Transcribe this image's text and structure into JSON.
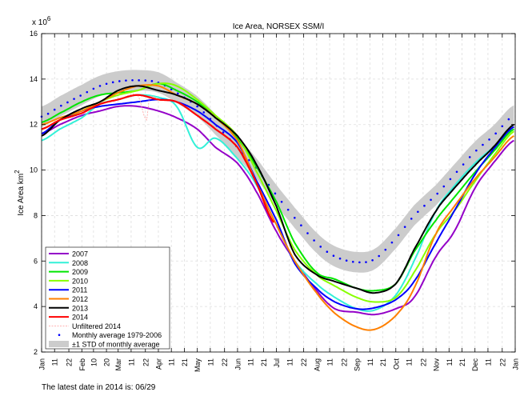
{
  "chart_data": {
    "type": "line",
    "title": "Ice Area, NORSEX SSM/I",
    "ylabel": "Ice Area km",
    "ylabel_superscript": "2",
    "y_multiplier_label": "x 10",
    "y_multiplier_exponent": "6",
    "xlabel": "",
    "ylim": [
      2,
      16
    ],
    "yticks": [
      2,
      4,
      6,
      8,
      10,
      12,
      14,
      16
    ],
    "xlim_day_of_year": [
      1,
      366
    ],
    "grid": true,
    "legend_placement": "bottom-left",
    "xticks": [
      {
        "day": 1,
        "label": "Jan"
      },
      {
        "day": 11,
        "label": "11"
      },
      {
        "day": 22,
        "label": "22"
      },
      {
        "day": 32,
        "label": "Feb"
      },
      {
        "day": 41,
        "label": "10"
      },
      {
        "day": 51,
        "label": "20"
      },
      {
        "day": 60,
        "label": "Mar"
      },
      {
        "day": 70,
        "label": "11"
      },
      {
        "day": 81,
        "label": "22"
      },
      {
        "day": 91,
        "label": "Apr"
      },
      {
        "day": 101,
        "label": "11"
      },
      {
        "day": 111,
        "label": "21"
      },
      {
        "day": 121,
        "label": "May"
      },
      {
        "day": 131,
        "label": "11"
      },
      {
        "day": 142,
        "label": "22"
      },
      {
        "day": 152,
        "label": "Jun"
      },
      {
        "day": 162,
        "label": "11"
      },
      {
        "day": 172,
        "label": "21"
      },
      {
        "day": 182,
        "label": "Jul"
      },
      {
        "day": 192,
        "label": "11"
      },
      {
        "day": 203,
        "label": "22"
      },
      {
        "day": 213,
        "label": "Aug"
      },
      {
        "day": 223,
        "label": "11"
      },
      {
        "day": 234,
        "label": "22"
      },
      {
        "day": 244,
        "label": "Sep"
      },
      {
        "day": 254,
        "label": "11"
      },
      {
        "day": 264,
        "label": "21"
      },
      {
        "day": 274,
        "label": "Oct"
      },
      {
        "day": 284,
        "label": "11"
      },
      {
        "day": 295,
        "label": "22"
      },
      {
        "day": 305,
        "label": "Nov"
      },
      {
        "day": 315,
        "label": "11"
      },
      {
        "day": 325,
        "label": "21"
      },
      {
        "day": 335,
        "label": "Dec"
      },
      {
        "day": 345,
        "label": "11"
      },
      {
        "day": 356,
        "label": "22"
      },
      {
        "day": 366,
        "label": "Jan"
      }
    ],
    "days": [
      1,
      15,
      32,
      46,
      60,
      75,
      91,
      105,
      121,
      135,
      152,
      166,
      182,
      196,
      213,
      227,
      244,
      258,
      274,
      288,
      305,
      319,
      335,
      349,
      365
    ],
    "mean": {
      "name": "Monthly average 1979-2006",
      "color": "#0000ff",
      "values": [
        12.35,
        12.8,
        13.3,
        13.7,
        13.9,
        13.95,
        13.85,
        13.4,
        12.8,
        12.0,
        11.0,
        10.1,
        8.9,
        7.9,
        6.8,
        6.2,
        5.95,
        6.1,
        7.0,
        8.0,
        8.9,
        9.8,
        10.8,
        11.5,
        12.4
      ],
      "std": 0.45
    },
    "std_band": {
      "name": "±1 STD of monthly average",
      "color": "#cccccc"
    },
    "series": [
      {
        "name": "2007",
        "color": "#9400c8",
        "values": [
          11.6,
          12.0,
          12.4,
          12.6,
          12.8,
          12.8,
          12.6,
          12.3,
          11.8,
          11.0,
          10.3,
          9.1,
          7.3,
          6.0,
          4.7,
          3.9,
          3.75,
          3.65,
          3.9,
          4.4,
          6.2,
          7.3,
          9.2,
          10.3,
          11.3
        ]
      },
      {
        "name": "2008",
        "color": "#33f0d8",
        "values": [
          11.3,
          11.8,
          12.3,
          12.9,
          13.1,
          13.3,
          13.2,
          12.8,
          11.0,
          11.4,
          10.5,
          9.4,
          7.6,
          6.0,
          5.0,
          4.4,
          3.9,
          3.85,
          4.5,
          6.0,
          8.2,
          9.3,
          10.3,
          11.0,
          11.8
        ]
      },
      {
        "name": "2009",
        "color": "#00e600",
        "values": [
          12.1,
          12.5,
          13.0,
          13.3,
          13.4,
          13.5,
          13.8,
          13.5,
          13.0,
          12.3,
          11.4,
          10.2,
          8.6,
          6.8,
          5.5,
          5.2,
          4.8,
          4.7,
          5.0,
          6.4,
          7.8,
          8.8,
          9.9,
          10.8,
          11.8
        ]
      },
      {
        "name": "2010",
        "color": "#88ff00",
        "values": [
          11.8,
          12.2,
          12.6,
          13.0,
          13.3,
          13.5,
          13.8,
          13.7,
          13.1,
          12.4,
          11.5,
          10.0,
          8.2,
          6.5,
          5.4,
          4.9,
          4.4,
          4.2,
          4.4,
          5.5,
          7.2,
          8.2,
          9.5,
          10.6,
          11.7
        ]
      },
      {
        "name": "2011",
        "color": "#0000ff",
        "values": [
          11.6,
          12.2,
          12.6,
          12.8,
          12.9,
          13.0,
          13.1,
          13.0,
          12.6,
          12.0,
          11.2,
          9.6,
          7.8,
          5.9,
          4.8,
          4.2,
          3.9,
          3.95,
          4.3,
          5.1,
          6.8,
          8.2,
          9.8,
          10.9,
          11.9
        ]
      },
      {
        "name": "2012",
        "color": "#ff8000",
        "values": [
          12.0,
          12.3,
          12.6,
          13.0,
          13.4,
          13.7,
          13.7,
          13.3,
          12.9,
          12.3,
          11.3,
          9.5,
          7.6,
          6.0,
          4.6,
          3.7,
          3.1,
          3.0,
          3.6,
          4.8,
          7.2,
          8.4,
          9.6,
          10.5,
          11.5
        ]
      },
      {
        "name": "2013",
        "color": "#000000",
        "values": [
          11.5,
          12.2,
          12.7,
          13.0,
          13.5,
          13.7,
          13.5,
          13.3,
          12.9,
          12.3,
          11.5,
          10.3,
          8.4,
          6.3,
          5.4,
          5.1,
          4.8,
          4.6,
          5.0,
          6.5,
          8.2,
          9.2,
          10.2,
          11.0,
          12.0
        ]
      },
      {
        "name": "2014",
        "color": "#ff0000",
        "days": [
          1,
          15,
          32,
          46,
          60,
          75,
          91,
          105,
          121,
          135,
          152,
          166,
          180
        ],
        "values": [
          11.8,
          12.2,
          12.5,
          12.9,
          13.1,
          13.3,
          13.1,
          13.0,
          12.4,
          11.8,
          11.0,
          9.5,
          7.7
        ]
      }
    ],
    "unfiltered": {
      "name": "Unfiltered 2014",
      "color": "#ff9999",
      "days": [
        1,
        15,
        32,
        46,
        60,
        75,
        82,
        84,
        91,
        105,
        121,
        135,
        152,
        166,
        180
      ],
      "values": [
        11.8,
        12.2,
        12.5,
        12.9,
        13.1,
        13.3,
        12.2,
        13.2,
        13.1,
        13.0,
        12.4,
        11.8,
        11.0,
        9.5,
        7.7
      ]
    }
  },
  "footer": {
    "latest_date_text": "The latest date in 2014 is: 06/29"
  }
}
